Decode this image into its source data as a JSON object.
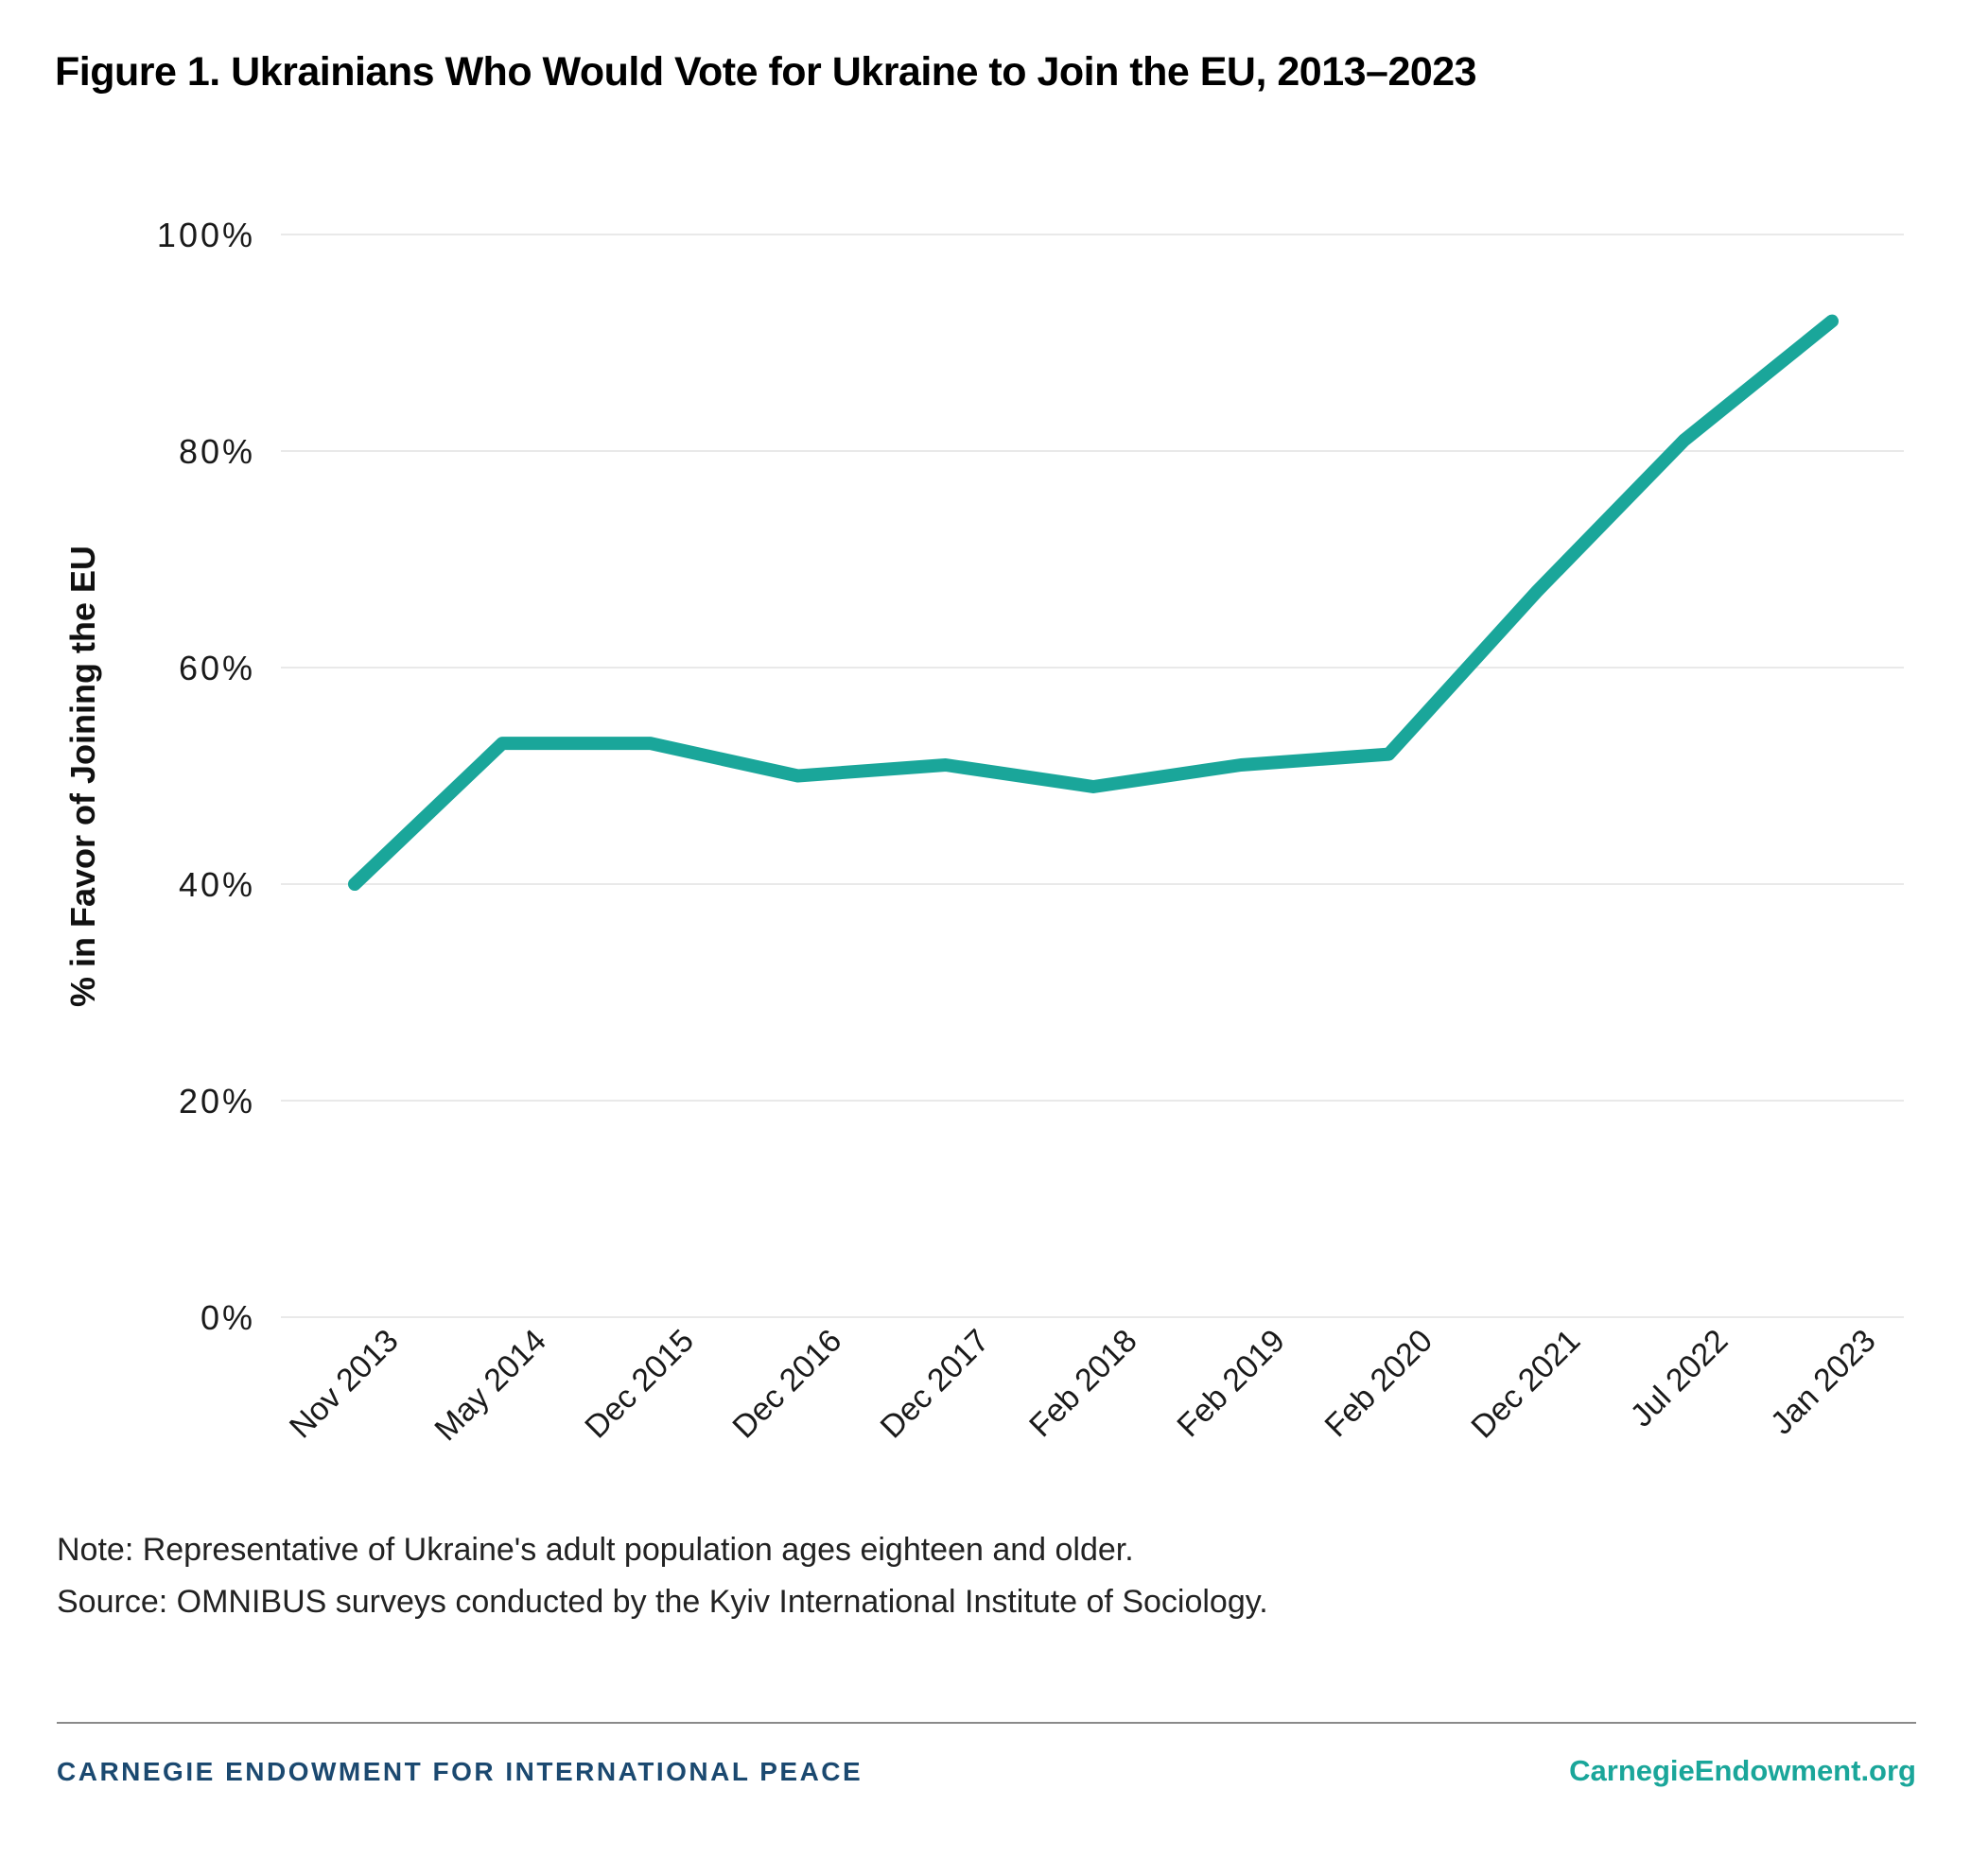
{
  "title": "Figure 1. Ukrainians Who Would Vote for Ukraine to Join the EU, 2013–2023",
  "chart_data": {
    "type": "line",
    "title": "Figure 1. Ukrainians Who Would Vote for Ukraine to Join the EU, 2013–2023",
    "categories": [
      "Nov 2013",
      "May 2014",
      "Dec 2015",
      "Dec 2016",
      "Dec 2017",
      "Feb 2018",
      "Feb 2019",
      "Feb 2020",
      "Dec 2021",
      "Jul 2022",
      "Jan 2023"
    ],
    "series": [
      {
        "name": "% in Favor of Joining the EU",
        "values": [
          40,
          53,
          53,
          50,
          51,
          49,
          51,
          52,
          67,
          81,
          92
        ]
      }
    ],
    "xlabel": "",
    "ylabel": "% in Favor of Joining the EU",
    "ylim": [
      0,
      100
    ],
    "yticks": [
      0,
      20,
      40,
      60,
      80,
      100
    ],
    "ytick_labels": [
      "0%",
      "20%",
      "40%",
      "60%",
      "80%",
      "100%"
    ],
    "grid": true,
    "legend": "none",
    "line_color": "#1aa69a"
  },
  "notes": {
    "note": "Note: Representative of Ukraine's adult population ages eighteen and older.",
    "source": "Source: OMNIBUS surveys conducted by the Kyiv International Institute of Sociology."
  },
  "footer": {
    "org": "CARNEGIE ENDOWMENT FOR INTERNATIONAL PEACE",
    "site": "CarnegieEndowment.org"
  },
  "colors": {
    "line": "#1aa69a",
    "grid": "#e9e9e9",
    "tick_text": "#1a1a1a",
    "axis_title": "#111111",
    "note_text": "#222222",
    "footer_navy": "#1b4970",
    "footer_teal": "#1aa69a",
    "rule_gray": "#8a8a8a"
  }
}
